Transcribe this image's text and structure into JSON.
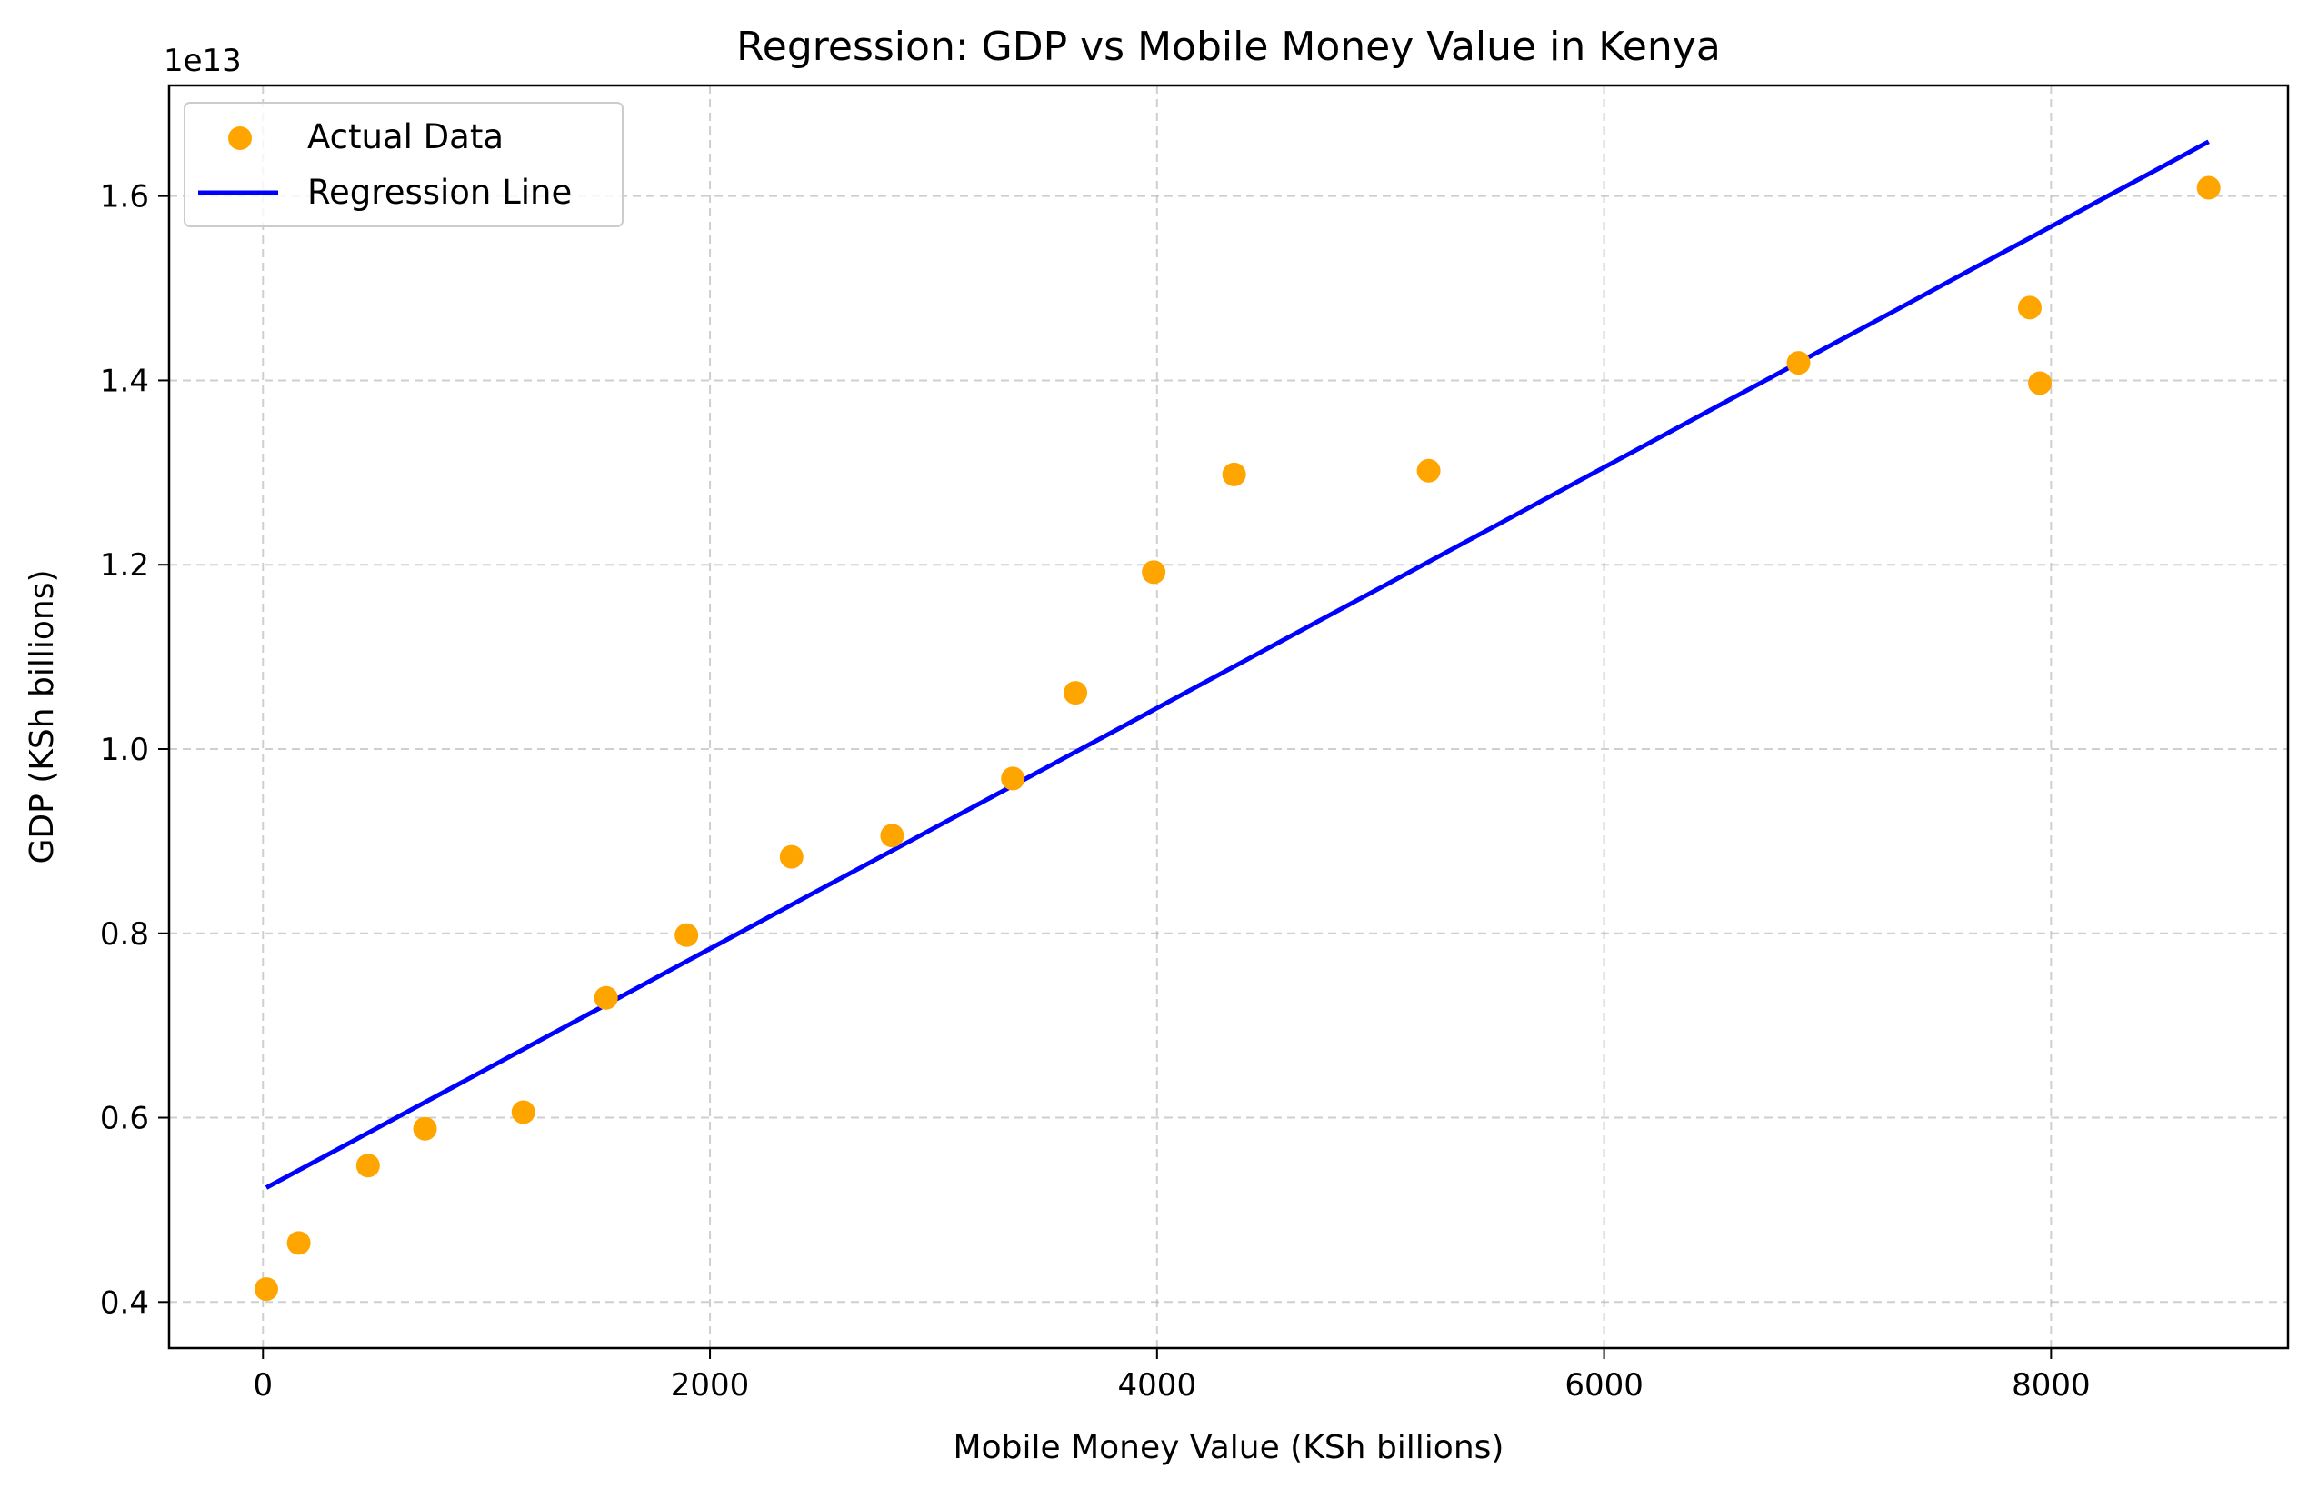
{
  "chart_data": {
    "type": "scatter",
    "title": "Regression: GDP vs Mobile Money Value in Kenya",
    "xlabel": "Mobile Money Value (KSh billions)",
    "ylabel": "GDP (KSh billions)",
    "y_offset_label": "1e13",
    "xlim": [
      -420,
      9060
    ],
    "ylim": [
      0.35,
      1.72
    ],
    "x_ticks": [
      0,
      2000,
      4000,
      6000,
      8000
    ],
    "x_tick_labels": [
      "0",
      "2000",
      "4000",
      "6000",
      "8000"
    ],
    "y_ticks": [
      0.4,
      0.6,
      0.8,
      1.0,
      1.2,
      1.4,
      1.6
    ],
    "y_tick_labels": [
      "0.4",
      "0.6",
      "0.8",
      "1.0",
      "1.2",
      "1.4",
      "1.6"
    ],
    "grid": true,
    "legend_position": "top-left",
    "series": [
      {
        "name": "Actual Data",
        "kind": "scatter",
        "color": "#ffa500",
        "points": [
          {
            "x": 15,
            "y": 0.414
          },
          {
            "x": 160,
            "y": 0.464
          },
          {
            "x": 470,
            "y": 0.548
          },
          {
            "x": 725,
            "y": 0.588
          },
          {
            "x": 1165,
            "y": 0.606
          },
          {
            "x": 1535,
            "y": 0.73
          },
          {
            "x": 1895,
            "y": 0.798
          },
          {
            "x": 2365,
            "y": 0.883
          },
          {
            "x": 2815,
            "y": 0.906
          },
          {
            "x": 3355,
            "y": 0.968
          },
          {
            "x": 3635,
            "y": 1.061
          },
          {
            "x": 3985,
            "y": 1.192
          },
          {
            "x": 4345,
            "y": 1.298
          },
          {
            "x": 5215,
            "y": 1.302
          },
          {
            "x": 6870,
            "y": 1.419
          },
          {
            "x": 7905,
            "y": 1.479
          },
          {
            "x": 7950,
            "y": 1.397
          },
          {
            "x": 8705,
            "y": 1.609
          }
        ]
      },
      {
        "name": "Regression Line",
        "kind": "line",
        "color": "#0000ff",
        "points": [
          {
            "x": 15,
            "y": 0.524
          },
          {
            "x": 8705,
            "y": 1.659
          }
        ]
      }
    ]
  }
}
